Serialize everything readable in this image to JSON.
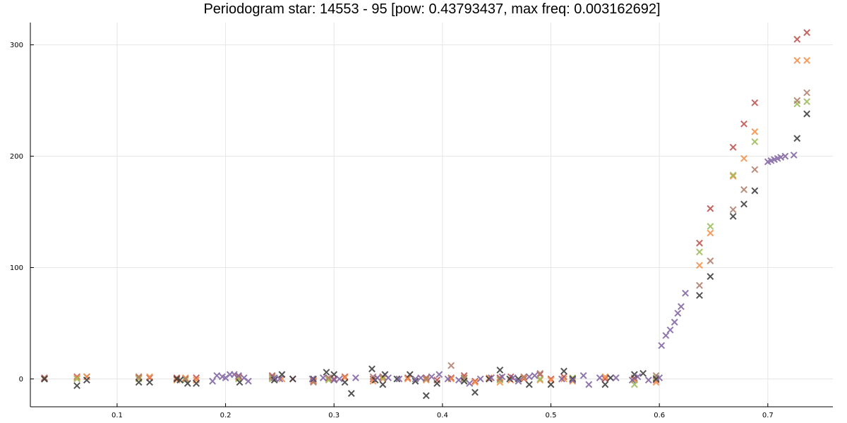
{
  "chart_data": {
    "type": "scatter",
    "title": "Periodogram star: 14553 - 95 [pow: 0.43793437, max freq: 0.003162692]",
    "xlabel": "",
    "ylabel": "",
    "xlim": [
      0.02,
      0.76
    ],
    "ylim": [
      -25,
      320
    ],
    "x_ticks": [
      0.1,
      0.2,
      0.3,
      0.4,
      0.5,
      0.6,
      0.7
    ],
    "y_ticks": [
      0,
      100,
      200,
      300
    ],
    "x_tick_labels": [
      "0.1",
      "0.2",
      "0.3",
      "0.4",
      "0.5",
      "0.6",
      "0.7"
    ],
    "y_tick_labels": [
      "0",
      "100",
      "200",
      "300"
    ],
    "grid": true,
    "legend": "none",
    "marker": "x",
    "series": [
      {
        "color": "#c0504d",
        "points": [
          [
            0.033,
            1
          ],
          [
            0.063,
            2
          ],
          [
            0.072,
            2
          ],
          [
            0.12,
            1
          ],
          [
            0.13,
            1
          ],
          [
            0.155,
            1
          ],
          [
            0.163,
            0
          ],
          [
            0.173,
            1
          ],
          [
            0.212,
            2
          ],
          [
            0.243,
            3
          ],
          [
            0.262,
            0
          ],
          [
            0.281,
            -2
          ],
          [
            0.295,
            1
          ],
          [
            0.3,
            0
          ],
          [
            0.31,
            2
          ],
          [
            0.336,
            0
          ],
          [
            0.345,
            2
          ],
          [
            0.368,
            1
          ],
          [
            0.385,
            1
          ],
          [
            0.395,
            -1
          ],
          [
            0.408,
            1
          ],
          [
            0.42,
            3
          ],
          [
            0.43,
            -2
          ],
          [
            0.443,
            0
          ],
          [
            0.453,
            1
          ],
          [
            0.463,
            2
          ],
          [
            0.475,
            0
          ],
          [
            0.49,
            4
          ],
          [
            0.5,
            0
          ],
          [
            0.512,
            2
          ],
          [
            0.52,
            0
          ],
          [
            0.55,
            0
          ],
          [
            0.577,
            0
          ],
          [
            0.597,
            -1
          ],
          [
            0.637,
            122
          ],
          [
            0.647,
            153
          ],
          [
            0.668,
            208
          ],
          [
            0.678,
            229
          ],
          [
            0.688,
            248
          ],
          [
            0.727,
            305
          ],
          [
            0.736,
            311
          ]
        ]
      },
      {
        "color": "#f4904a",
        "points": [
          [
            0.033,
            0
          ],
          [
            0.063,
            1
          ],
          [
            0.072,
            2
          ],
          [
            0.12,
            2
          ],
          [
            0.13,
            2
          ],
          [
            0.155,
            -1
          ],
          [
            0.163,
            1
          ],
          [
            0.173,
            -1
          ],
          [
            0.212,
            1
          ],
          [
            0.243,
            1
          ],
          [
            0.252,
            0
          ],
          [
            0.281,
            -1
          ],
          [
            0.295,
            0
          ],
          [
            0.31,
            1
          ],
          [
            0.336,
            -2
          ],
          [
            0.345,
            0
          ],
          [
            0.368,
            0
          ],
          [
            0.385,
            -1
          ],
          [
            0.408,
            0
          ],
          [
            0.42,
            1
          ],
          [
            0.43,
            -3
          ],
          [
            0.443,
            1
          ],
          [
            0.453,
            -3
          ],
          [
            0.463,
            -1
          ],
          [
            0.475,
            1
          ],
          [
            0.49,
            -1
          ],
          [
            0.5,
            -1
          ],
          [
            0.512,
            0
          ],
          [
            0.52,
            -2
          ],
          [
            0.55,
            2
          ],
          [
            0.577,
            -1
          ],
          [
            0.597,
            -3
          ],
          [
            0.637,
            102
          ],
          [
            0.647,
            131
          ],
          [
            0.668,
            182
          ],
          [
            0.678,
            198
          ],
          [
            0.688,
            222
          ],
          [
            0.727,
            286
          ],
          [
            0.736,
            286
          ]
        ]
      },
      {
        "color": "#9bbb59",
        "points": [
          [
            0.033,
            0
          ],
          [
            0.063,
            0
          ],
          [
            0.12,
            0
          ],
          [
            0.163,
            -1
          ],
          [
            0.212,
            0
          ],
          [
            0.243,
            0
          ],
          [
            0.295,
            -1
          ],
          [
            0.345,
            1
          ],
          [
            0.385,
            0
          ],
          [
            0.42,
            0
          ],
          [
            0.453,
            -1
          ],
          [
            0.49,
            0
          ],
          [
            0.52,
            1
          ],
          [
            0.577,
            -5
          ],
          [
            0.597,
            1
          ],
          [
            0.637,
            114
          ],
          [
            0.647,
            137
          ],
          [
            0.668,
            183
          ],
          [
            0.688,
            213
          ],
          [
            0.727,
            247
          ],
          [
            0.736,
            249
          ]
        ]
      },
      {
        "color": "#b07f6c",
        "points": [
          [
            0.033,
            0
          ],
          [
            0.12,
            2
          ],
          [
            0.163,
            0
          ],
          [
            0.243,
            2
          ],
          [
            0.281,
            -3
          ],
          [
            0.295,
            1
          ],
          [
            0.336,
            2
          ],
          [
            0.385,
            0
          ],
          [
            0.408,
            12
          ],
          [
            0.42,
            1
          ],
          [
            0.453,
            0
          ],
          [
            0.475,
            2
          ],
          [
            0.49,
            5
          ],
          [
            0.52,
            0
          ],
          [
            0.577,
            1
          ],
          [
            0.597,
            3
          ],
          [
            0.637,
            84
          ],
          [
            0.647,
            106
          ],
          [
            0.668,
            152
          ],
          [
            0.678,
            170
          ],
          [
            0.688,
            188
          ],
          [
            0.727,
            250
          ],
          [
            0.736,
            257
          ]
        ]
      },
      {
        "color": "#3c3c3c",
        "points": [
          [
            0.033,
            0
          ],
          [
            0.063,
            -6
          ],
          [
            0.072,
            -1
          ],
          [
            0.12,
            -3
          ],
          [
            0.13,
            -3
          ],
          [
            0.155,
            0
          ],
          [
            0.158,
            -1
          ],
          [
            0.165,
            -4
          ],
          [
            0.173,
            -4
          ],
          [
            0.213,
            -3
          ],
          [
            0.245,
            -1
          ],
          [
            0.252,
            4
          ],
          [
            0.262,
            0
          ],
          [
            0.281,
            0
          ],
          [
            0.293,
            6
          ],
          [
            0.3,
            4
          ],
          [
            0.31,
            -3
          ],
          [
            0.316,
            -13
          ],
          [
            0.335,
            9
          ],
          [
            0.338,
            -1
          ],
          [
            0.345,
            -5
          ],
          [
            0.347,
            4
          ],
          [
            0.358,
            0
          ],
          [
            0.37,
            4
          ],
          [
            0.375,
            -2
          ],
          [
            0.385,
            -15
          ],
          [
            0.395,
            -4
          ],
          [
            0.42,
            -2
          ],
          [
            0.43,
            -12
          ],
          [
            0.443,
            0
          ],
          [
            0.453,
            8
          ],
          [
            0.462,
            0
          ],
          [
            0.47,
            0
          ],
          [
            0.48,
            -5
          ],
          [
            0.5,
            -5
          ],
          [
            0.512,
            7
          ],
          [
            0.52,
            0
          ],
          [
            0.55,
            -5
          ],
          [
            0.555,
            1
          ],
          [
            0.577,
            4
          ],
          [
            0.585,
            5
          ],
          [
            0.597,
            0
          ],
          [
            0.637,
            75
          ],
          [
            0.647,
            92
          ],
          [
            0.668,
            146
          ],
          [
            0.678,
            157
          ],
          [
            0.688,
            169
          ],
          [
            0.727,
            216
          ],
          [
            0.736,
            238
          ]
        ]
      },
      {
        "color": "#8064a2",
        "points": [
          [
            0.188,
            -2
          ],
          [
            0.192,
            3
          ],
          [
            0.197,
            2
          ],
          [
            0.2,
            1
          ],
          [
            0.204,
            4
          ],
          [
            0.208,
            4
          ],
          [
            0.212,
            3
          ],
          [
            0.217,
            1
          ],
          [
            0.221,
            -2
          ],
          [
            0.245,
            1
          ],
          [
            0.25,
            0
          ],
          [
            0.28,
            0
          ],
          [
            0.29,
            1
          ],
          [
            0.3,
            -1
          ],
          [
            0.305,
            0
          ],
          [
            0.32,
            1
          ],
          [
            0.34,
            1
          ],
          [
            0.35,
            1
          ],
          [
            0.36,
            0
          ],
          [
            0.375,
            0
          ],
          [
            0.38,
            1
          ],
          [
            0.39,
            2
          ],
          [
            0.397,
            4
          ],
          [
            0.405,
            0
          ],
          [
            0.415,
            -1
          ],
          [
            0.425,
            -4
          ],
          [
            0.435,
            0
          ],
          [
            0.445,
            1
          ],
          [
            0.455,
            2
          ],
          [
            0.465,
            1
          ],
          [
            0.47,
            -2
          ],
          [
            0.48,
            2
          ],
          [
            0.485,
            3
          ],
          [
            0.51,
            0
          ],
          [
            0.52,
            -1
          ],
          [
            0.53,
            3
          ],
          [
            0.535,
            -5
          ],
          [
            0.545,
            1
          ],
          [
            0.56,
            1
          ],
          [
            0.575,
            -1
          ],
          [
            0.58,
            2
          ],
          [
            0.59,
            -1
          ],
          [
            0.6,
            1
          ],
          [
            0.602,
            30
          ],
          [
            0.606,
            39
          ],
          [
            0.61,
            44
          ],
          [
            0.614,
            51
          ],
          [
            0.617,
            59
          ],
          [
            0.62,
            65
          ],
          [
            0.624,
            77
          ],
          [
            0.7,
            195
          ],
          [
            0.703,
            196
          ],
          [
            0.706,
            197
          ],
          [
            0.709,
            198
          ],
          [
            0.712,
            199
          ],
          [
            0.716,
            200
          ],
          [
            0.724,
            201
          ]
        ]
      }
    ]
  }
}
